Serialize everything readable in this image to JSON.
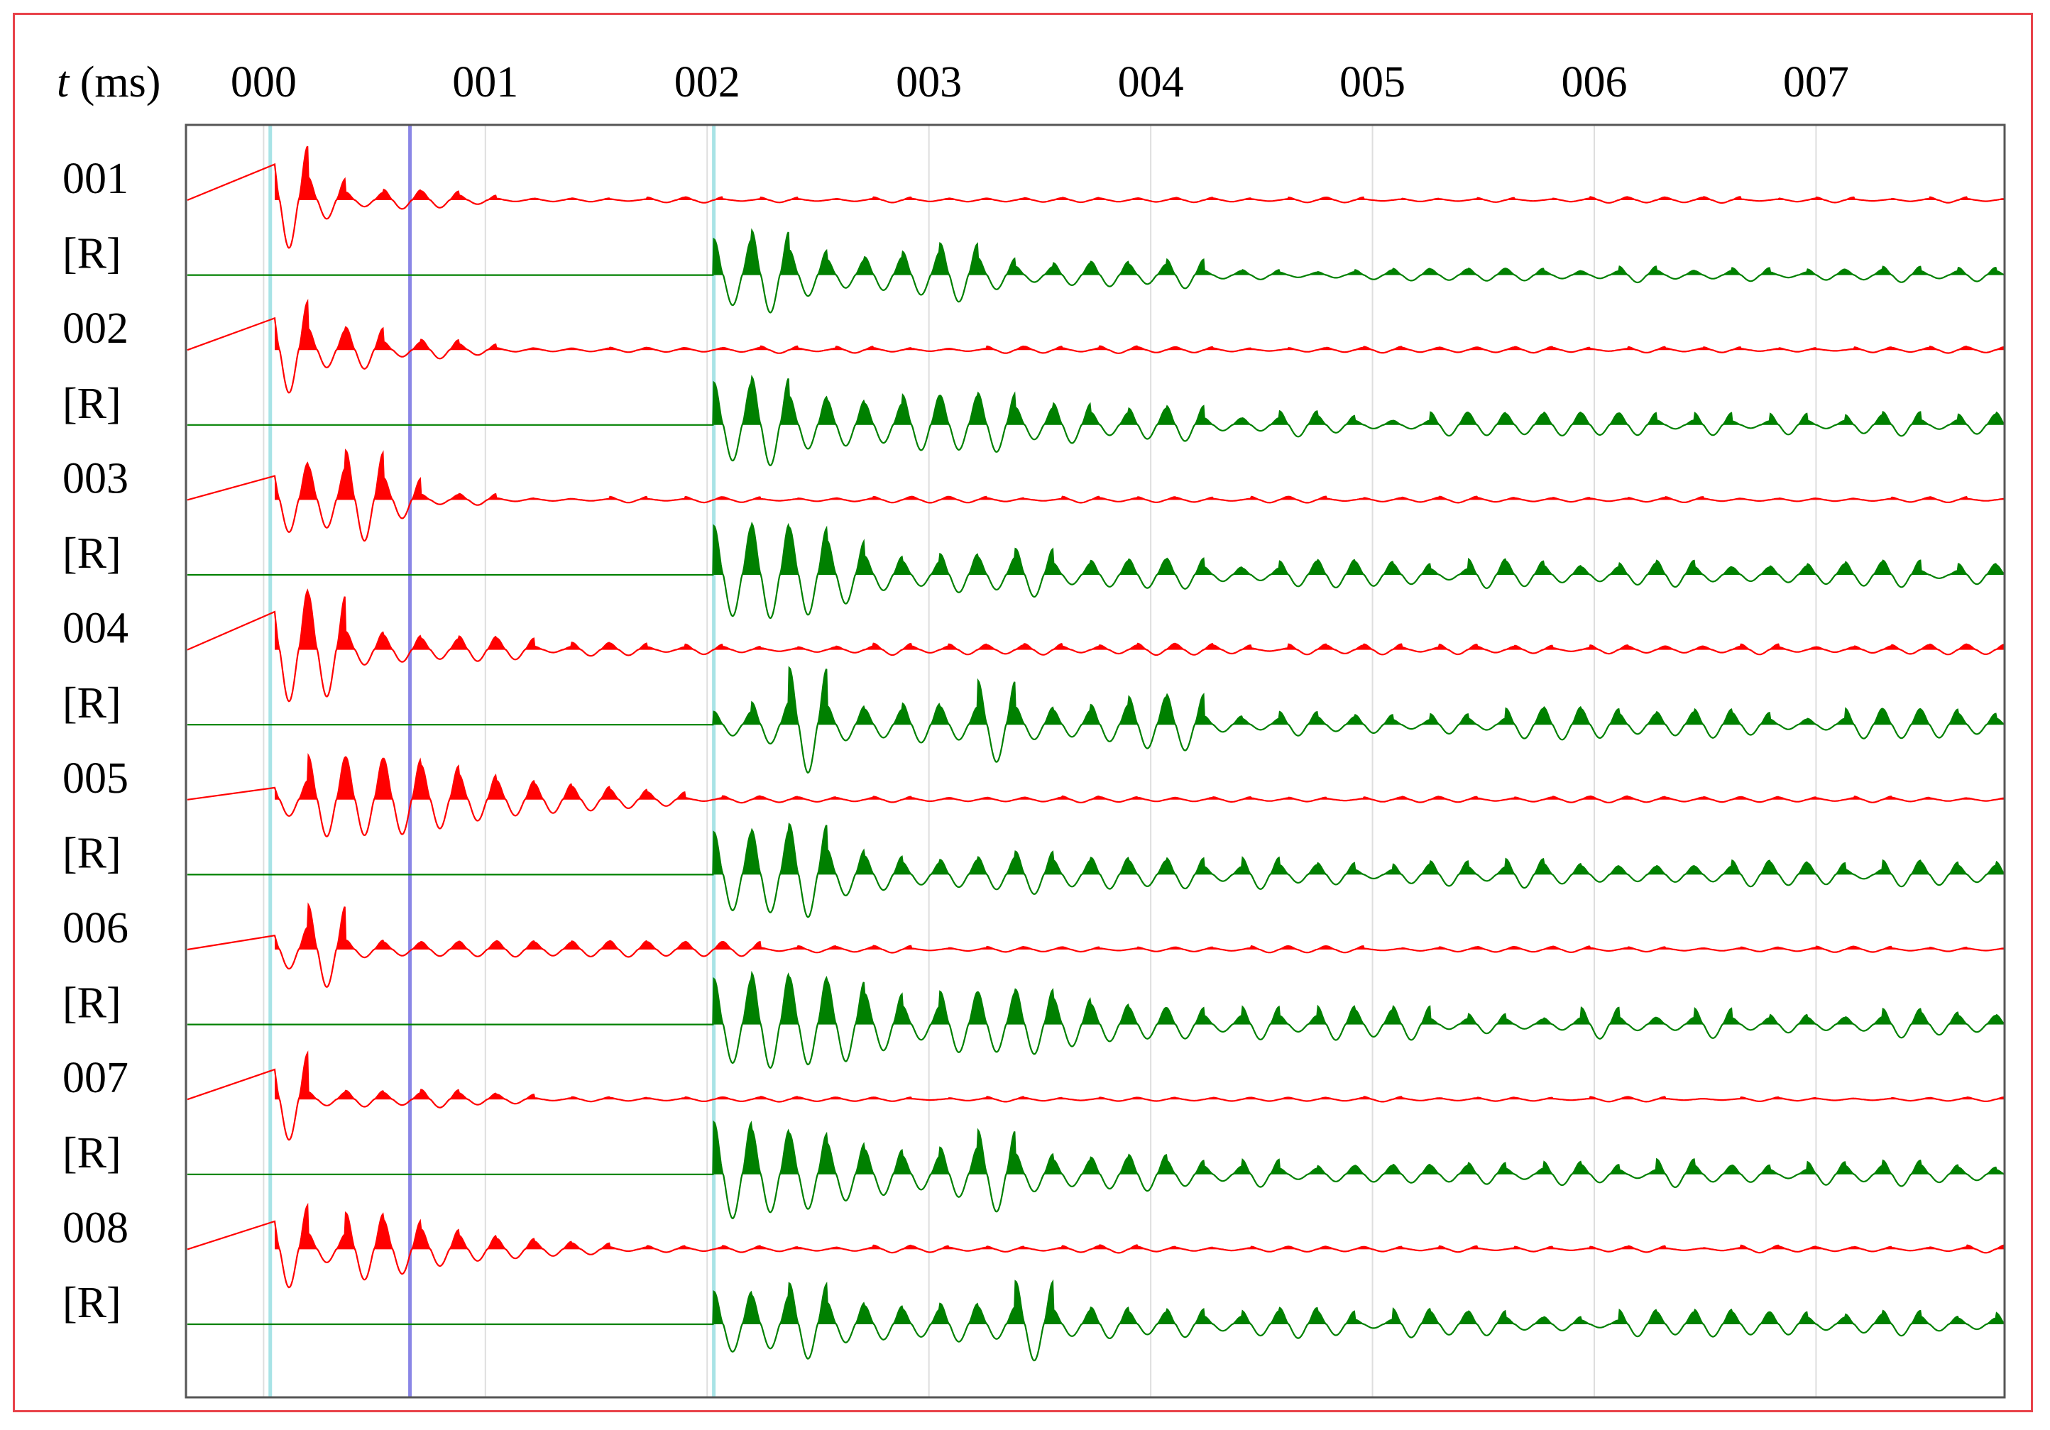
{
  "chart_data": {
    "type": "line",
    "title": "",
    "xlabel": "t (ms)",
    "xlabel_var": "t",
    "xlabel_unit": " (ms)",
    "xlim": [
      -0.35,
      7.85
    ],
    "x_ticks": [
      {
        "value": 0,
        "label": "000"
      },
      {
        "value": 1,
        "label": "001"
      },
      {
        "value": 2,
        "label": "002"
      },
      {
        "value": 3,
        "label": "003"
      },
      {
        "value": 4,
        "label": "004"
      },
      {
        "value": 5,
        "label": "005"
      },
      {
        "value": 6,
        "label": "006"
      },
      {
        "value": 7,
        "label": "007"
      }
    ],
    "gridlines_x": [
      0,
      1,
      2,
      3,
      4,
      5,
      6,
      7
    ],
    "markers": [
      {
        "name": "transmit-onset-marker",
        "x": 0.03,
        "color": "#a8e3e6"
      },
      {
        "name": "transmit-end-marker",
        "x": 0.66,
        "color": "#8a86e6"
      },
      {
        "name": "receive-onset-marker",
        "x": 2.03,
        "color": "#a8e3e6"
      }
    ],
    "series": [
      {
        "label": "001",
        "role": "transmitted",
        "color": "#ff0000",
        "t0": 0.03,
        "peaks": [
          0.9,
          0.38,
          0.14,
          0.2,
          0.18,
          0.1
        ],
        "decay": 0.65,
        "tail": 0.05,
        "seed": 11
      },
      {
        "label": "[R]",
        "role": "received",
        "color": "#008000",
        "t0": 2.03,
        "peaks": [
          0.55,
          0.7,
          0.4,
          0.25,
          0.3,
          0.4,
          0.55,
          0.3,
          0.15,
          0.22,
          0.25,
          0.2,
          0.3
        ],
        "decay": 2.5,
        "tail": 0.12,
        "seed": 12
      },
      {
        "label": "002",
        "role": "transmitted",
        "color": "#ff0000",
        "t0": 0.03,
        "peaks": [
          0.8,
          0.35,
          0.4,
          0.15,
          0.2,
          0.12
        ],
        "decay": 0.75,
        "tail": 0.06,
        "seed": 21
      },
      {
        "label": "[R]",
        "role": "received",
        "color": "#008000",
        "t0": 2.03,
        "peaks": [
          0.65,
          0.75,
          0.45,
          0.4,
          0.35,
          0.5,
          0.5,
          0.55,
          0.3,
          0.38,
          0.22,
          0.3,
          0.35
        ],
        "decay": 3.2,
        "tail": 0.18,
        "seed": 22
      },
      {
        "label": "003",
        "role": "transmitted",
        "color": "#ff0000",
        "t0": 0.03,
        "peaks": [
          0.6,
          0.55,
          0.85,
          0.4,
          0.1,
          0.12
        ],
        "decay": 0.9,
        "tail": 0.05,
        "seed": 31
      },
      {
        "label": "[R]",
        "role": "received",
        "color": "#008000",
        "t0": 2.03,
        "peaks": [
          0.75,
          0.8,
          0.75,
          0.55,
          0.3,
          0.22,
          0.35,
          0.3,
          0.45,
          0.2,
          0.25,
          0.28,
          0.3
        ],
        "decay": 3.5,
        "tail": 0.2,
        "seed": 32
      },
      {
        "label": "004",
        "role": "transmitted",
        "color": "#ff0000",
        "t0": 0.03,
        "peaks": [
          0.95,
          0.9,
          0.3,
          0.25,
          0.2,
          0.25,
          0.22
        ],
        "decay": 1.3,
        "tail": 0.09,
        "seed": 41
      },
      {
        "label": "[R]",
        "role": "received",
        "color": "#008000",
        "t0": 2.03,
        "peaks": [
          0.2,
          0.35,
          0.9,
          0.3,
          0.25,
          0.35,
          0.3,
          0.75,
          0.3,
          0.25,
          0.35,
          0.5,
          0.55
        ],
        "decay": 3.6,
        "tail": 0.22,
        "seed": 42
      },
      {
        "label": "005",
        "role": "transmitted",
        "color": "#ff0000",
        "t0": 0.03,
        "peaks": [
          0.3,
          0.7,
          0.7,
          0.7,
          0.6,
          0.45,
          0.35,
          0.3,
          0.25,
          0.2,
          0.15
        ],
        "decay": 1.6,
        "tail": 0.05,
        "seed": 51
      },
      {
        "label": "[R]",
        "role": "received",
        "color": "#008000",
        "t0": 2.03,
        "peaks": [
          0.65,
          0.7,
          0.8,
          0.4,
          0.3,
          0.2,
          0.25,
          0.3,
          0.4,
          0.25,
          0.3,
          0.25,
          0.3
        ],
        "decay": 3.4,
        "tail": 0.2,
        "seed": 52
      },
      {
        "label": "006",
        "role": "transmitted",
        "color": "#ff0000",
        "t0": 0.03,
        "peaks": [
          0.35,
          0.7,
          0.15,
          0.12,
          0.13,
          0.14,
          0.15,
          0.13,
          0.15,
          0.16,
          0.14,
          0.15,
          0.15
        ],
        "decay": 2.4,
        "tail": 0.05,
        "seed": 61
      },
      {
        "label": "[R]",
        "role": "received",
        "color": "#008000",
        "t0": 2.03,
        "peaks": [
          0.7,
          0.8,
          0.75,
          0.7,
          0.5,
          0.3,
          0.55,
          0.55,
          0.6,
          0.45,
          0.35,
          0.3,
          0.3
        ],
        "decay": 3.8,
        "tail": 0.22,
        "seed": 62
      },
      {
        "label": "007",
        "role": "transmitted",
        "color": "#ff0000",
        "t0": 0.03,
        "peaks": [
          0.75,
          0.12,
          0.15,
          0.12,
          0.18,
          0.12,
          0.1
        ],
        "decay": 1.0,
        "tail": 0.04,
        "seed": 71
      },
      {
        "label": "[R]",
        "role": "received",
        "color": "#008000",
        "t0": 2.03,
        "peaks": [
          0.8,
          0.7,
          0.65,
          0.5,
          0.4,
          0.3,
          0.45,
          0.75,
          0.35,
          0.25,
          0.3,
          0.35,
          0.25
        ],
        "decay": 3.6,
        "tail": 0.2,
        "seed": 72
      },
      {
        "label": "008",
        "role": "transmitted",
        "color": "#ff0000",
        "t0": 0.03,
        "peaks": [
          0.7,
          0.25,
          0.6,
          0.5,
          0.35,
          0.25,
          0.2,
          0.15,
          0.12
        ],
        "decay": 1.5,
        "tail": 0.06,
        "seed": 81
      },
      {
        "label": "[R]",
        "role": "received",
        "color": "#008000",
        "t0": 2.03,
        "peaks": [
          0.5,
          0.45,
          0.65,
          0.35,
          0.3,
          0.25,
          0.35,
          0.3,
          0.75,
          0.25,
          0.3,
          0.22,
          0.28
        ],
        "decay": 3.2,
        "tail": 0.2,
        "seed": 82
      }
    ]
  }
}
